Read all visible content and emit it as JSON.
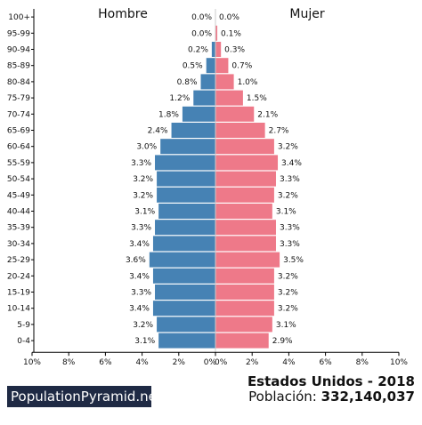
{
  "colors": {
    "male": "#4682b4",
    "female": "#ee7989",
    "axis": "#000000",
    "brand_bg": "#1f2a44"
  },
  "chart_data": {
    "type": "bar",
    "orientation": "horizontal-pyramid",
    "categories": [
      "100+",
      "95-99",
      "90-94",
      "85-89",
      "80-84",
      "75-79",
      "70-74",
      "65-69",
      "60-64",
      "55-59",
      "50-54",
      "45-49",
      "40-44",
      "35-39",
      "30-34",
      "25-29",
      "20-24",
      "15-19",
      "10-14",
      "5-9",
      "0-4"
    ],
    "series": [
      {
        "name": "Hombre",
        "side": "left",
        "color": "#4682b4",
        "values": [
          0.0,
          0.0,
          0.2,
          0.5,
          0.8,
          1.2,
          1.8,
          2.4,
          3.0,
          3.3,
          3.2,
          3.2,
          3.1,
          3.3,
          3.4,
          3.6,
          3.4,
          3.3,
          3.4,
          3.2,
          3.1
        ]
      },
      {
        "name": "Mujer",
        "side": "right",
        "color": "#ee7989",
        "values": [
          0.0,
          0.1,
          0.3,
          0.7,
          1.0,
          1.5,
          2.1,
          2.7,
          3.2,
          3.4,
          3.3,
          3.2,
          3.1,
          3.3,
          3.3,
          3.5,
          3.2,
          3.2,
          3.2,
          3.1,
          2.9
        ]
      }
    ],
    "xlim": [
      0,
      10
    ],
    "xticks": [
      "10%",
      "8%",
      "6%",
      "4%",
      "2%",
      "0%",
      "0%",
      "2%",
      "4%",
      "6%",
      "8%",
      "10%"
    ],
    "grid": false
  },
  "footer": {
    "brand": "PopulationPyramid.net",
    "title": "Estados Unidos - 2018",
    "population_label": "Población:",
    "population_value": "332,140,037"
  }
}
